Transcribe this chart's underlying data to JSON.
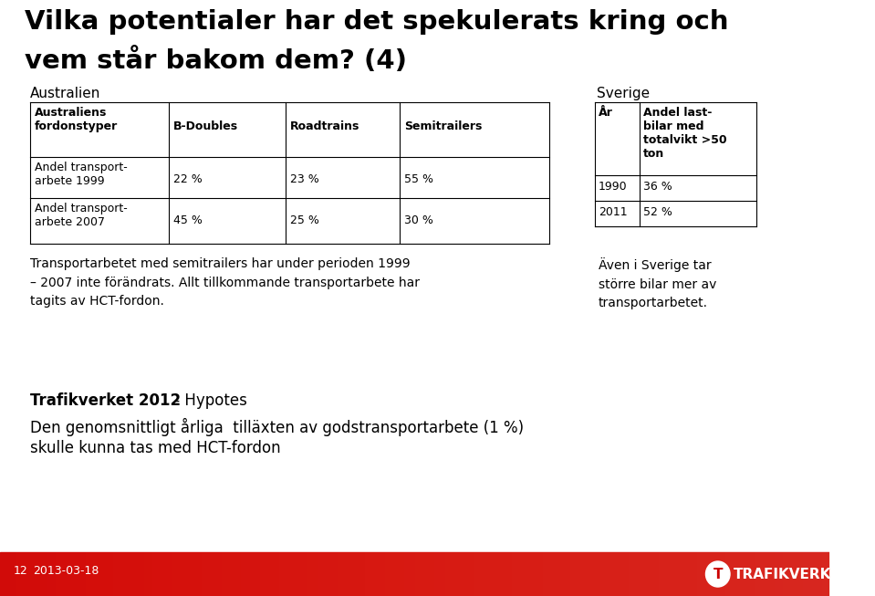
{
  "title_line1": "Vilka potentialer har det spekulerats kring och",
  "title_line2": "vem står bakom dem? (4)",
  "australien_label": "Australien",
  "sverige_label": "Sverige",
  "aus_headers": [
    "Australiens\nfordonstyper",
    "B-Doubles",
    "Roadtrains",
    "Semitrailers"
  ],
  "aus_row1_label": "Andel transport-\narbete 1999",
  "aus_row1_values": [
    "22 %",
    "23 %",
    "55 %"
  ],
  "aus_row2_label": "Andel transport-\narbete 2007",
  "aus_row2_values": [
    "45 %",
    "25 %",
    "30 %"
  ],
  "sve_col1_header": "År",
  "sve_col2_header": "Andel last-\nbilar med\ntotalvikt >50\nton",
  "sve_row1": [
    "1990",
    "36 %"
  ],
  "sve_row2": [
    "2011",
    "52 %"
  ],
  "body_text": "Transportarbetet med semitrailers har under perioden 1999\n– 2007 inte förändrats. Allt tillkommande transportarbete har\ntagits av HCT-fordon.",
  "body_text_right": "Även i Sverige tar\nstörre bilar mer av\ntransportarbetet.",
  "footer_bold": "Trafikverket 2012",
  "footer_separator": " - ",
  "footer_normal": "Hypotes",
  "footer_line2": "Den genomsnittligt årliga  tilläxten av godstransportarbete (1 %)",
  "footer_line3": "skulle kunna tas med HCT-fordon",
  "slide_number": "12",
  "date": "2013-03-18",
  "bg_color": "#ffffff",
  "title_color": "#000000",
  "footer_bg_color": "#cc0000",
  "footer_text_color": "#ffffff",
  "trafikverket_text": "TRAFIKVERKET"
}
